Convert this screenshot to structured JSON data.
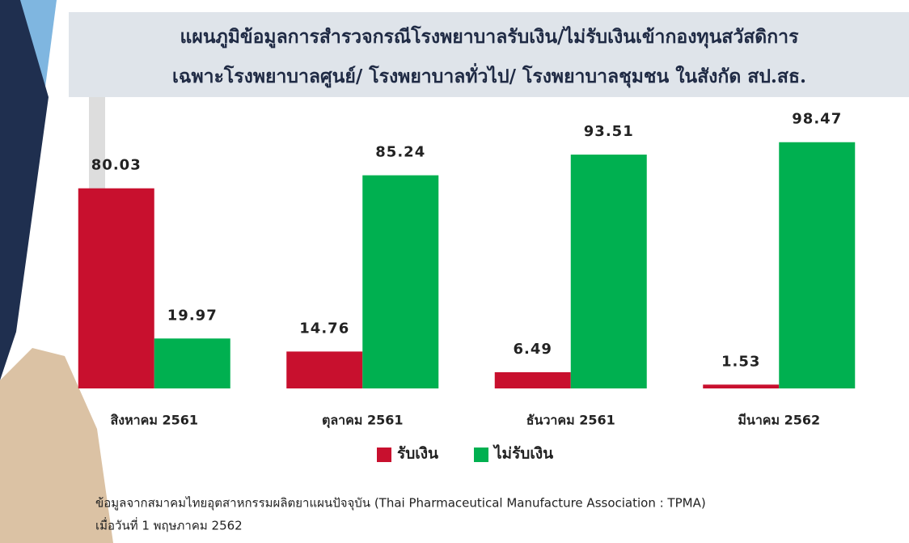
{
  "chart_data": {
    "type": "bar",
    "title": "แผนภูมิข้อมูลการสำรวจกรณีโรงพยาบาลรับเงิน/ไม่รับเงินเข้ากองทุนสวัสดิการ",
    "subtitle": "เฉพาะโรงพยาบาลศูนย์/ โรงพยาบาลทั่วไป/ โรงพยาบาลชุมชน ในสังกัด สป.สธ.",
    "categories": [
      "สิงหาคม 2561",
      "ตุลาคม 2561",
      "ธันวาคม 2561",
      "มีนาคม 2562"
    ],
    "series": [
      {
        "name": "รับเงิน",
        "color": "#c8102e",
        "values": [
          80.03,
          14.76,
          6.49,
          1.53
        ]
      },
      {
        "name": "ไม่รับเงิน",
        "color": "#00b050",
        "values": [
          19.97,
          85.24,
          93.51,
          98.47
        ]
      }
    ],
    "ylim": [
      0,
      100
    ],
    "notes": [
      "ข้อมูลจากสมาคมไทยอุตสาหกรรมผลิตยาแผนปัจจุบัน (Thai Pharmaceutical Manufacture Association : TPMA)",
      "เมื่อวันที่ 1 พฤษภาคม 2562"
    ]
  }
}
